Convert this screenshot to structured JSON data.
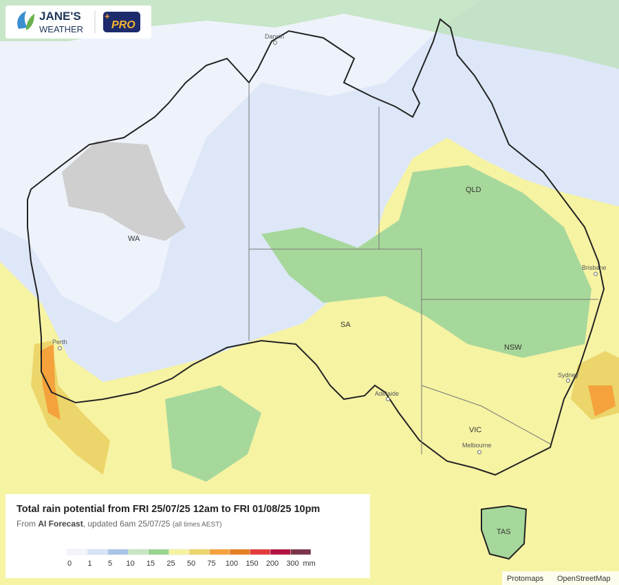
{
  "logo": {
    "brand": "JANE'S",
    "sub": "WEATHER",
    "plus": "+",
    "pro": "PRO"
  },
  "places": {
    "darwin": "Darwin",
    "perth": "Perth",
    "adelaide": "Adelaide",
    "melbourne": "Melbourne",
    "sydney": "Sydney",
    "brisbane": "Brisbane"
  },
  "regions": {
    "wa": "WA",
    "qld": "QLD",
    "sa": "SA",
    "nsw": "NSW",
    "vic": "VIC",
    "tas": "TAS"
  },
  "caption": {
    "title": "Total rain potential from FRI 25/07/25 12am to FRI 01/08/25 10pm",
    "from": "From",
    "model": "AI Forecast",
    "updated": ", updated 6am 25/07/25",
    "tz": "(all times AEST)"
  },
  "legend": {
    "ticks": [
      0,
      1,
      5,
      10,
      15,
      25,
      50,
      75,
      100,
      150,
      200,
      300
    ],
    "unit": "mm",
    "colors": [
      "#f2f5fc",
      "#d6e3f6",
      "#a9c3e8",
      "#c6e6c1",
      "#98d48f",
      "#f6f3a0",
      "#ecd56a",
      "#f5a23c",
      "#e57d1f",
      "#e2393b",
      "#b3113f",
      "#7a3448"
    ]
  },
  "attribution": {
    "a": "Protomaps",
    "b": "OpenStreetMap"
  }
}
